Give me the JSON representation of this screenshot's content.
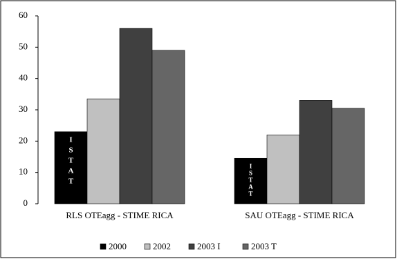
{
  "chart_data": {
    "type": "bar",
    "categories": [
      "RLS OTEagg - STIME RICA",
      "SAU OTEagg - STIME RICA"
    ],
    "series": [
      {
        "name": "2000",
        "color": "#000000",
        "values": [
          23,
          14.5
        ]
      },
      {
        "name": "2002",
        "color": "#c0c0c0",
        "values": [
          33.5,
          22
        ]
      },
      {
        "name": "2003 I",
        "color": "#404040",
        "values": [
          56,
          33
        ]
      },
      {
        "name": "2003 T",
        "color": "#666666",
        "values": [
          49,
          30.5
        ]
      }
    ],
    "annotations": [
      "ISTAT",
      "ISTAT"
    ],
    "ylim": [
      0,
      60
    ],
    "yticks": [
      0,
      10,
      20,
      30,
      40,
      50,
      60
    ],
    "grid": false,
    "legend": "bottom"
  }
}
